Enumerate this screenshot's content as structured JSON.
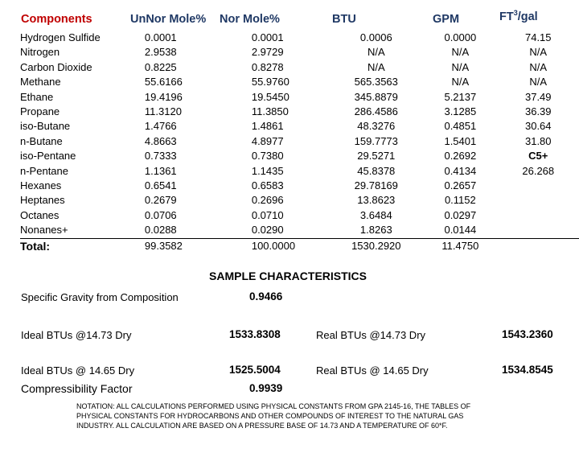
{
  "headers": {
    "components": "Components",
    "unnor": "UnNor Mole%",
    "nor": "Nor Mole%",
    "btu": "BTU",
    "gpm": "GPM",
    "ft_base": "FT",
    "ft_sup": "3",
    "ft_suffix": "/gal"
  },
  "rows": [
    {
      "name": "Hydrogen Sulfide",
      "unnor": "0.0001",
      "nor": "0.0001",
      "btu": "0.0006",
      "gpm": "0.0000",
      "ft": "74.15"
    },
    {
      "name": "Nitrogen",
      "unnor": "2.9538",
      "nor": "2.9729",
      "btu": "N/A",
      "gpm": "N/A",
      "ft": "N/A"
    },
    {
      "name": "Carbon Dioxide",
      "unnor": "0.8225",
      "nor": "0.8278",
      "btu": "N/A",
      "gpm": "N/A",
      "ft": "N/A"
    },
    {
      "name": "Methane",
      "unnor": "55.6166",
      "nor": "55.9760",
      "btu": "565.3563",
      "gpm": "N/A",
      "ft": "N/A"
    },
    {
      "name": "Ethane",
      "unnor": "19.4196",
      "nor": "19.5450",
      "btu": "345.8879",
      "gpm": "5.2137",
      "ft": "37.49"
    },
    {
      "name": "Propane",
      "unnor": "11.3120",
      "nor": "11.3850",
      "btu": "286.4586",
      "gpm": "3.1285",
      "ft": "36.39"
    },
    {
      "name": "iso-Butane",
      "unnor": "1.4766",
      "nor": "1.4861",
      "btu": "48.3276",
      "gpm": "0.4851",
      "ft": "30.64"
    },
    {
      "name": "n-Butane",
      "unnor": "4.8663",
      "nor": "4.8977",
      "btu": "159.7773",
      "gpm": "1.5401",
      "ft": "31.80"
    },
    {
      "name": "iso-Pentane",
      "unnor": "0.7333",
      "nor": "0.7380",
      "btu": "29.5271",
      "gpm": "0.2692",
      "ft": "C5+"
    },
    {
      "name": "n-Pentane",
      "unnor": "1.1361",
      "nor": "1.1435",
      "btu": "45.8378",
      "gpm": "0.4134",
      "ft": "26.268"
    },
    {
      "name": "Hexanes",
      "unnor": "0.6541",
      "nor": "0.6583",
      "btu": "29.78169",
      "gpm": "0.2657",
      "ft": ""
    },
    {
      "name": "Heptanes",
      "unnor": "0.2679",
      "nor": "0.2696",
      "btu": "13.8623",
      "gpm": "0.1152",
      "ft": ""
    },
    {
      "name": "Octanes",
      "unnor": "0.0706",
      "nor": "0.0710",
      "btu": "3.6484",
      "gpm": "0.0297",
      "ft": ""
    },
    {
      "name": "Nonanes+",
      "unnor": "0.0288",
      "nor": "0.0290",
      "btu": "1.8263",
      "gpm": "0.0144",
      "ft": ""
    }
  ],
  "total": {
    "label": "Total:",
    "unnor": "99.3582",
    "nor": "100.0000",
    "btu": "1530.2920",
    "gpm": "11.4750"
  },
  "sample": {
    "title": "SAMPLE CHARACTERISTICS",
    "sg_label": "Specific Gravity from Composition",
    "sg_value": "0.9466",
    "ideal_1473_label": "Ideal BTUs @14.73 Dry",
    "ideal_1473_value": "1533.8308",
    "real_1473_label": "Real BTUs @14.73 Dry",
    "real_1473_value": "1543.2360",
    "ideal_1465_label": "Ideal BTUs @ 14.65 Dry",
    "ideal_1465_value": "1525.5004",
    "real_1465_label": "Real BTUs @ 14.65 Dry",
    "real_1465_value": "1534.8545",
    "comp_label": "Compressibility Factor",
    "comp_value": "0.9939"
  },
  "notation": "NOTATION:    ALL CALCULATIONS PERFORMED USING PHYSICAL CONSTANTS FROM GPA 2145-16, THE TABLES OF PHYSICAL CONSTANTS FOR HYDROCARBONS AND OTHER COMPOUNDS OF INTEREST TO THE NATURAL GAS INDUSTRY.  ALL CALCULATION ARE BASED ON A PRESSURE BASE OF 14.73 AND A TEMPERATURE OF 60*F.",
  "colors": {
    "header_red": "#c00000",
    "header_blue": "#1f3864"
  }
}
